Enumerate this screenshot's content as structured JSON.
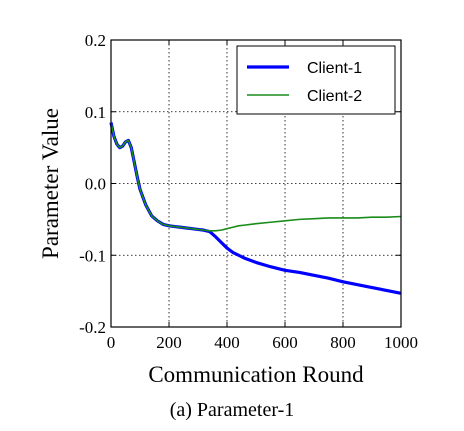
{
  "chart_data": {
    "type": "line",
    "xlabel": "Communication Round",
    "ylabel": "Parameter Value",
    "xlim": [
      0,
      1000
    ],
    "ylim": [
      -0.2,
      0.2
    ],
    "xticks": [
      0,
      200,
      400,
      600,
      800,
      1000
    ],
    "xtick_labels": [
      "0",
      "200",
      "400",
      "600",
      "800",
      "1000"
    ],
    "yticks": [
      -0.2,
      -0.1,
      0.0,
      0.1,
      0.2
    ],
    "ytick_labels": [
      "-0.2",
      "-0.1",
      "0.0",
      "0.1",
      "0.2"
    ],
    "grid": true,
    "legend": "top-right",
    "caption": "(a) Parameter-1",
    "series": [
      {
        "name": "Client-1",
        "color": "#0000ff",
        "x": [
          0,
          10,
          20,
          30,
          40,
          50,
          60,
          70,
          80,
          90,
          100,
          120,
          140,
          160,
          180,
          200,
          220,
          240,
          260,
          280,
          300,
          320,
          340,
          360,
          380,
          400,
          420,
          440,
          460,
          480,
          500,
          550,
          600,
          650,
          700,
          750,
          800,
          850,
          900,
          950,
          1000
        ],
        "y": [
          0.085,
          0.066,
          0.055,
          0.05,
          0.052,
          0.058,
          0.06,
          0.05,
          0.03,
          0.01,
          -0.008,
          -0.03,
          -0.045,
          -0.052,
          -0.057,
          -0.059,
          -0.06,
          -0.061,
          -0.062,
          -0.063,
          -0.064,
          -0.065,
          -0.067,
          -0.074,
          -0.082,
          -0.09,
          -0.096,
          -0.1,
          -0.104,
          -0.107,
          -0.11,
          -0.116,
          -0.121,
          -0.124,
          -0.128,
          -0.132,
          -0.137,
          -0.141,
          -0.145,
          -0.149,
          -0.153
        ]
      },
      {
        "name": "Client-2",
        "color": "#1a8c1a",
        "x": [
          0,
          10,
          20,
          30,
          40,
          50,
          60,
          70,
          80,
          90,
          100,
          120,
          140,
          160,
          180,
          200,
          220,
          240,
          260,
          280,
          300,
          320,
          340,
          360,
          380,
          400,
          420,
          440,
          460,
          480,
          500,
          550,
          600,
          650,
          700,
          750,
          800,
          850,
          900,
          950,
          1000
        ],
        "y": [
          0.085,
          0.066,
          0.055,
          0.05,
          0.052,
          0.058,
          0.06,
          0.05,
          0.03,
          0.01,
          -0.008,
          -0.03,
          -0.045,
          -0.052,
          -0.057,
          -0.059,
          -0.06,
          -0.061,
          -0.062,
          -0.063,
          -0.064,
          -0.065,
          -0.066,
          -0.066,
          -0.065,
          -0.063,
          -0.061,
          -0.059,
          -0.058,
          -0.057,
          -0.056,
          -0.054,
          -0.052,
          -0.05,
          -0.049,
          -0.048,
          -0.048,
          -0.048,
          -0.047,
          -0.047,
          -0.046
        ]
      }
    ]
  }
}
